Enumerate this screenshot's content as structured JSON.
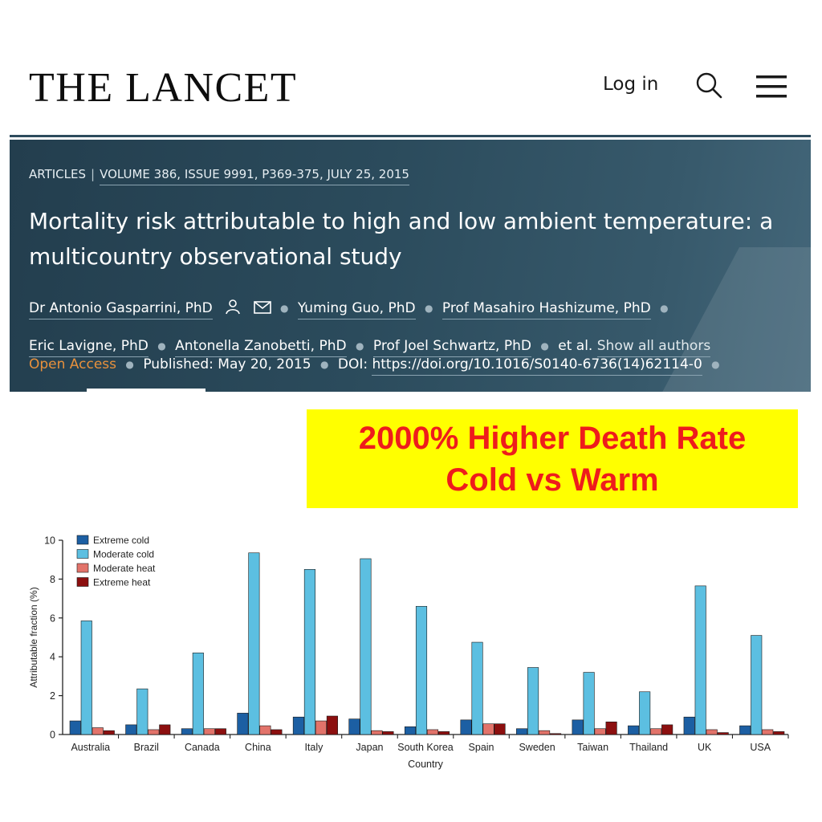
{
  "header": {
    "logo": "THE LANCET",
    "login_label": "Log in",
    "search_icon": "search-icon",
    "menu_icon": "hamburger-menu-icon"
  },
  "article": {
    "type": "ARTICLES",
    "volume": "VOLUME 386, ISSUE 9991, P369-375, JULY 25, 2015",
    "title": "Mortality risk attributable to high and low ambient temperature: a multicountry observational study",
    "authors": [
      "Dr Antonio Gasparrini, PhD",
      "Yuming Guo, PhD",
      "Prof Masahiro Hashizume, PhD",
      "Eric Lavigne, PhD",
      "Antonella Zanobetti, PhD",
      "Prof Joel Schwartz, PhD"
    ],
    "et_al": "et al.",
    "show_all": "Show all authors",
    "open_access": "Open Access",
    "published_label": "Published:",
    "published_date": "May 20, 2015",
    "doi_label": "DOI:",
    "doi": "https://doi.org/10.1016/S0140-6736(14)62114-0"
  },
  "callout": {
    "line1": "2000% Higher Death Rate",
    "line2": "Cold vs Warm",
    "bg_color": "#ffff00",
    "text_color": "#ee1c1c"
  },
  "chart_data": {
    "type": "bar",
    "title": "",
    "xlabel": "Country",
    "ylabel": "Attributable fraction (%)",
    "ylim": [
      0,
      10
    ],
    "yticks": [
      0,
      2,
      4,
      6,
      8,
      10
    ],
    "grid": false,
    "legend_position": "top-left",
    "categories": [
      "Australia",
      "Brazil",
      "Canada",
      "China",
      "Italy",
      "Japan",
      "South Korea",
      "Spain",
      "Sweden",
      "Taiwan",
      "Thailand",
      "UK",
      "USA"
    ],
    "series": [
      {
        "name": "Extreme cold",
        "color": "#1c5fa3",
        "values": [
          0.7,
          0.5,
          0.3,
          1.1,
          0.9,
          0.8,
          0.4,
          0.75,
          0.3,
          0.75,
          0.45,
          0.9,
          0.45
        ]
      },
      {
        "name": "Moderate cold",
        "color": "#5cbfe1",
        "values": [
          5.85,
          2.35,
          4.2,
          9.35,
          8.5,
          9.05,
          6.6,
          4.75,
          3.45,
          3.2,
          2.2,
          7.65,
          5.1
        ]
      },
      {
        "name": "Moderate heat",
        "color": "#e2736a",
        "values": [
          0.35,
          0.25,
          0.3,
          0.45,
          0.7,
          0.2,
          0.25,
          0.55,
          0.2,
          0.3,
          0.3,
          0.25,
          0.25
        ]
      },
      {
        "name": "Extreme heat",
        "color": "#8c0f0f",
        "values": [
          0.2,
          0.5,
          0.3,
          0.25,
          0.95,
          0.15,
          0.15,
          0.55,
          0.05,
          0.65,
          0.5,
          0.1,
          0.15
        ]
      }
    ]
  }
}
